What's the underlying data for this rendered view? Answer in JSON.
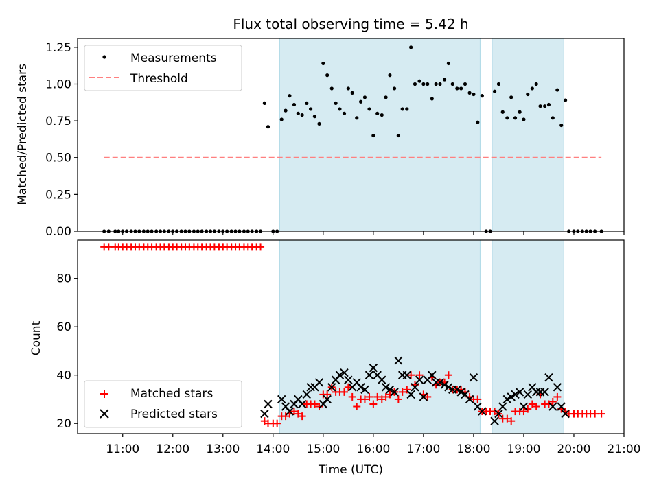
{
  "chart_data": [
    {
      "type": "scatter",
      "title": "Flux total observing time = 5.42 h",
      "xlabel": "",
      "ylabel": "Matched/Predicted stars",
      "xlim": [
        10.1,
        21.0
      ],
      "ylim": [
        0.0,
        1.31
      ],
      "yticks": [
        0.0,
        0.25,
        0.5,
        0.75,
        1.0,
        1.25
      ],
      "ytick_labels": [
        "0.00",
        "0.25",
        "0.50",
        "0.75",
        "1.00",
        "1.25"
      ],
      "legend": {
        "placement": "top-left",
        "entries": [
          "Measurements",
          "Threshold"
        ]
      },
      "shaded_intervals": [
        [
          14.13,
          18.13
        ],
        [
          18.37,
          19.8
        ]
      ],
      "threshold": {
        "name": "Threshold",
        "y": 0.5,
        "x_range": [
          10.63,
          20.55
        ],
        "color": "#ff8080"
      },
      "series": [
        {
          "name": "Measurements",
          "color": "#000000",
          "x": [
            10.63,
            10.72,
            10.85,
            10.92,
            11.0,
            11.08,
            11.17,
            11.25,
            11.33,
            11.42,
            11.5,
            11.58,
            11.67,
            11.75,
            11.83,
            11.92,
            12.0,
            12.08,
            12.17,
            12.25,
            12.33,
            12.42,
            12.5,
            12.58,
            12.67,
            12.75,
            12.83,
            12.92,
            13.0,
            13.08,
            13.17,
            13.25,
            13.33,
            13.42,
            13.5,
            13.58,
            13.67,
            13.75,
            13.83,
            13.9,
            14.0,
            14.08,
            14.17,
            14.25,
            14.33,
            14.42,
            14.5,
            14.58,
            14.67,
            14.75,
            14.83,
            14.92,
            15.0,
            15.08,
            15.17,
            15.25,
            15.33,
            15.42,
            15.5,
            15.58,
            15.67,
            15.75,
            15.83,
            15.92,
            16.0,
            16.08,
            16.17,
            16.25,
            16.33,
            16.42,
            16.5,
            16.58,
            16.67,
            16.75,
            16.83,
            16.92,
            17.0,
            17.08,
            17.17,
            17.25,
            17.33,
            17.42,
            17.5,
            17.58,
            17.67,
            17.75,
            17.83,
            17.92,
            18.0,
            18.08,
            18.17,
            18.25,
            18.33,
            18.42,
            18.5,
            18.58,
            18.67,
            18.75,
            18.83,
            18.92,
            19.0,
            19.08,
            19.17,
            19.25,
            19.33,
            19.42,
            19.5,
            19.58,
            19.67,
            19.75,
            19.83,
            19.9,
            20.0,
            20.08,
            20.17,
            20.25,
            20.33,
            20.42,
            20.55
          ],
          "y": [
            0.0,
            0.0,
            0.0,
            0.0,
            0.0,
            0.0,
            0.0,
            0.0,
            0.0,
            0.0,
            0.0,
            0.0,
            0.0,
            0.0,
            0.0,
            0.0,
            0.0,
            0.0,
            0.0,
            0.0,
            0.0,
            0.0,
            0.0,
            0.0,
            0.0,
            0.0,
            0.0,
            0.0,
            0.0,
            0.0,
            0.0,
            0.0,
            0.0,
            0.0,
            0.0,
            0.0,
            0.0,
            0.0,
            0.87,
            0.71,
            0.0,
            0.0,
            0.76,
            0.82,
            0.92,
            0.86,
            0.8,
            0.79,
            0.87,
            0.83,
            0.78,
            0.73,
            1.14,
            1.06,
            0.97,
            0.87,
            0.83,
            0.8,
            0.97,
            0.94,
            0.77,
            0.88,
            0.91,
            0.83,
            0.65,
            0.8,
            0.79,
            0.91,
            1.06,
            0.97,
            0.65,
            0.83,
            0.83,
            1.25,
            1.0,
            1.02,
            1.0,
            1.0,
            0.9,
            1.0,
            1.0,
            1.03,
            1.14,
            1.0,
            0.97,
            0.97,
            1.0,
            0.94,
            0.93,
            0.74,
            0.92,
            0.0,
            0.0,
            0.95,
            1.0,
            0.81,
            0.77,
            0.91,
            0.77,
            0.81,
            0.76,
            0.93,
            0.97,
            1.0,
            0.85,
            0.85,
            0.86,
            0.77,
            0.96,
            0.72,
            0.89,
            0.0,
            0.0,
            0.0,
            0.0,
            0.0,
            0.0,
            0.0,
            0.0
          ]
        }
      ]
    },
    {
      "type": "scatter",
      "title": "",
      "xlabel": "Time (UTC)",
      "ylabel": "Count",
      "xlim": [
        10.1,
        21.0
      ],
      "ylim": [
        15.8,
        95.8
      ],
      "xticks": [
        11,
        12,
        13,
        14,
        15,
        16,
        17,
        18,
        19,
        20,
        21
      ],
      "xtick_labels": [
        "11:00",
        "12:00",
        "13:00",
        "14:00",
        "15:00",
        "16:00",
        "17:00",
        "18:00",
        "19:00",
        "20:00",
        "21:00"
      ],
      "yticks": [
        20,
        40,
        60,
        80
      ],
      "ytick_labels": [
        "20",
        "40",
        "60",
        "80"
      ],
      "legend": {
        "placement": "bottom-left",
        "entries": [
          "Matched stars",
          "Predicted stars"
        ]
      },
      "shaded_intervals": [
        [
          14.13,
          18.13
        ],
        [
          18.37,
          19.8
        ]
      ],
      "series": [
        {
          "name": "Matched stars",
          "color": "#ff0000",
          "x": [
            10.63,
            10.72,
            10.85,
            10.92,
            11.0,
            11.08,
            11.17,
            11.25,
            11.33,
            11.42,
            11.5,
            11.58,
            11.67,
            11.75,
            11.83,
            11.92,
            12.0,
            12.08,
            12.17,
            12.25,
            12.33,
            12.42,
            12.5,
            12.58,
            12.67,
            12.75,
            12.83,
            12.92,
            13.0,
            13.08,
            13.17,
            13.25,
            13.33,
            13.42,
            13.5,
            13.58,
            13.67,
            13.75,
            13.83,
            13.9,
            14.0,
            14.08,
            14.17,
            14.25,
            14.33,
            14.42,
            14.5,
            14.58,
            14.67,
            14.75,
            14.83,
            14.92,
            15.0,
            15.08,
            15.17,
            15.25,
            15.33,
            15.42,
            15.5,
            15.58,
            15.67,
            15.75,
            15.83,
            15.92,
            16.0,
            16.08,
            16.17,
            16.25,
            16.33,
            16.42,
            16.5,
            16.58,
            16.67,
            16.75,
            16.83,
            16.92,
            17.0,
            17.08,
            17.17,
            17.25,
            17.33,
            17.42,
            17.5,
            17.58,
            17.67,
            17.75,
            17.83,
            17.92,
            18.0,
            18.08,
            18.17,
            18.25,
            18.33,
            18.42,
            18.5,
            18.58,
            18.67,
            18.75,
            18.83,
            18.92,
            19.0,
            19.08,
            19.17,
            19.25,
            19.33,
            19.42,
            19.5,
            19.58,
            19.67,
            19.75,
            19.83,
            19.9,
            20.0,
            20.08,
            20.17,
            20.25,
            20.33,
            20.42,
            20.55
          ],
          "y": [
            93,
            93,
            93,
            93,
            93,
            93,
            93,
            93,
            93,
            93,
            93,
            93,
            93,
            93,
            93,
            93,
            93,
            93,
            93,
            93,
            93,
            93,
            93,
            93,
            93,
            93,
            93,
            93,
            93,
            93,
            93,
            93,
            93,
            93,
            93,
            93,
            93,
            93,
            21,
            20,
            20,
            20,
            23,
            23,
            24,
            25,
            24,
            23,
            28,
            28,
            28,
            27,
            32,
            32,
            35,
            33,
            33,
            33,
            35,
            31,
            27,
            30,
            30,
            31,
            28,
            31,
            30,
            31,
            32,
            33,
            30,
            33,
            34,
            40,
            36,
            40,
            32,
            31,
            39,
            36,
            37,
            37,
            40,
            34,
            34,
            34,
            33,
            31,
            30,
            30,
            25,
            25,
            25,
            25,
            24,
            22,
            22,
            21,
            25,
            25,
            25,
            26,
            28,
            27,
            32,
            28,
            28,
            29,
            31,
            26,
            25,
            24,
            24,
            24,
            24,
            24,
            24,
            24,
            24
          ]
        },
        {
          "name": "Predicted stars",
          "color": "#000000",
          "x": [
            13.83,
            13.9,
            14.17,
            14.25,
            14.33,
            14.42,
            14.5,
            14.58,
            14.67,
            14.75,
            14.83,
            14.92,
            15.0,
            15.08,
            15.17,
            15.25,
            15.33,
            15.42,
            15.5,
            15.58,
            15.67,
            15.75,
            15.83,
            15.92,
            16.0,
            16.08,
            16.17,
            16.25,
            16.33,
            16.42,
            16.5,
            16.58,
            16.67,
            16.75,
            16.83,
            16.92,
            17.0,
            17.08,
            17.17,
            17.25,
            17.33,
            17.42,
            17.5,
            17.58,
            17.67,
            17.75,
            17.83,
            17.92,
            18.0,
            18.08,
            18.17,
            18.42,
            18.5,
            18.58,
            18.67,
            18.75,
            18.83,
            18.92,
            19.0,
            19.08,
            19.17,
            19.25,
            19.33,
            19.42,
            19.5,
            19.58,
            19.67,
            19.75,
            19.83
          ],
          "y": [
            24,
            28,
            30,
            27,
            25,
            28,
            30,
            28,
            32,
            35,
            35,
            37,
            28,
            30,
            35,
            38,
            40,
            41,
            38,
            35,
            37,
            35,
            34,
            40,
            43,
            40,
            38,
            35,
            34,
            33,
            46,
            40,
            40,
            32,
            35,
            38,
            31,
            38,
            40,
            37,
            37,
            36,
            35,
            34,
            34,
            33,
            32,
            30,
            39,
            27,
            25,
            21,
            24,
            27,
            30,
            31,
            32,
            33,
            27,
            32,
            35,
            33,
            33,
            33,
            39,
            27,
            35,
            27,
            24
          ]
        }
      ]
    }
  ]
}
